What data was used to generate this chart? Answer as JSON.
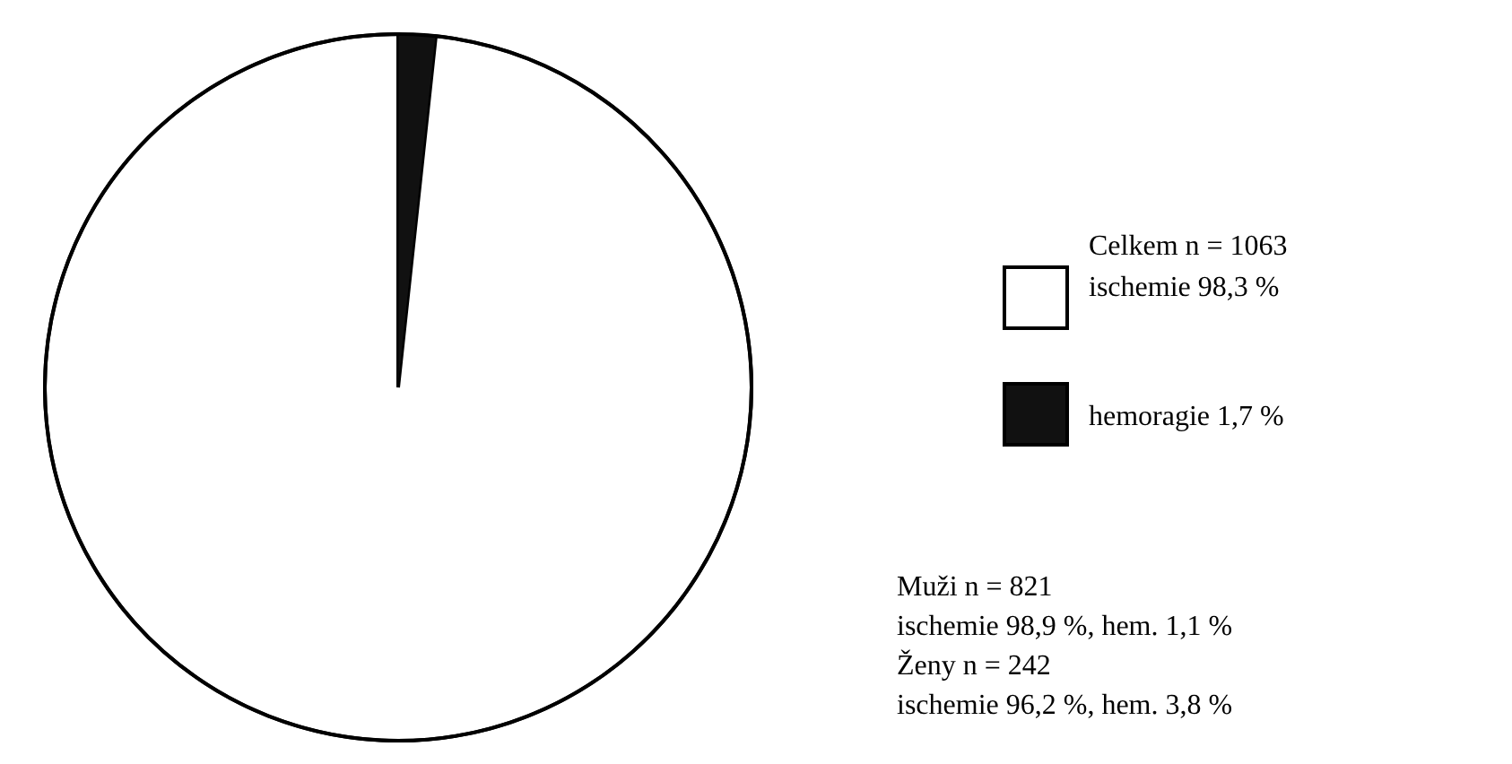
{
  "chart_data": {
    "type": "pie",
    "legend_title": "Celkem n = 1063",
    "categories": [
      "ischemie 98,3 %",
      "hemoragie 1,7 %"
    ],
    "values": [
      98.3,
      1.7
    ],
    "colors": [
      "#ffffff",
      "#111111"
    ],
    "legend": "right",
    "annotations": [
      "Muži n = 821",
      "ischemie 98,9 %, hem. 1,1 %",
      "Ženy n = 242",
      "ischemie 96,2 %, hem. 3,8 %"
    ]
  }
}
